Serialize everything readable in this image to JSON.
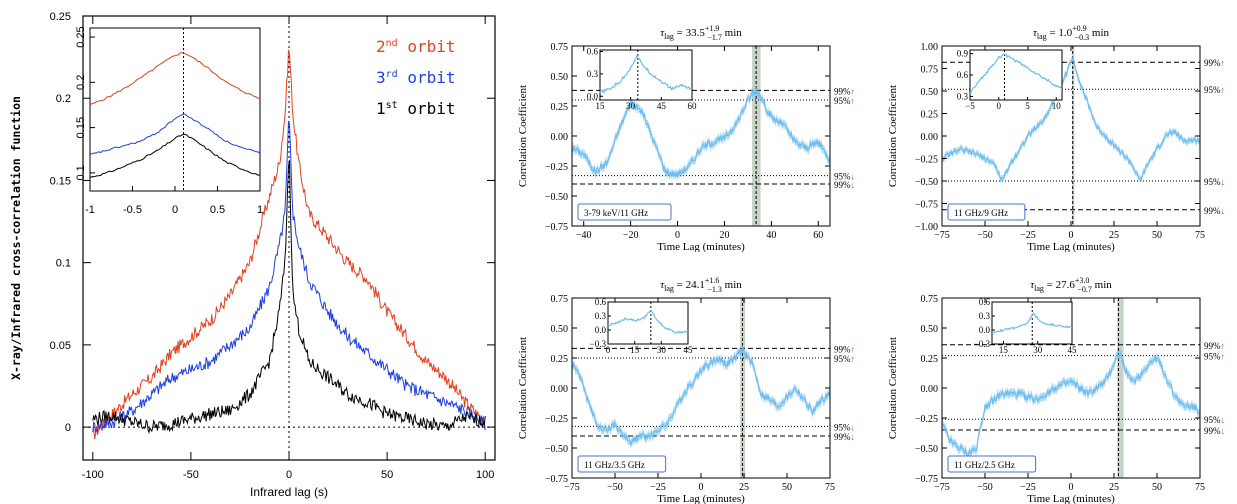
{
  "colors": {
    "red": "#e8401c",
    "blue": "#1c3fe8",
    "black": "#000000",
    "light_blue": "#6fbdf0",
    "shade": "#b8c8b8",
    "box": "#4a6fd0"
  },
  "chart_data": [
    {
      "type": "line",
      "xlabel": "Infrared lag (s)",
      "ylabel": "X-ray/Infrared cross-correlation function",
      "xlim": [
        -105,
        105
      ],
      "ylim": [
        -0.02,
        0.25
      ],
      "xticks": [
        -100,
        -50,
        0,
        50,
        100
      ],
      "yticks": [
        0,
        0.05,
        0.1,
        0.15,
        0.2,
        0.25
      ],
      "ytick_labels": [
        "0",
        "0.05",
        "0.1",
        "0.15",
        "0.2",
        "0.25"
      ],
      "legend": [
        {
          "base": "2",
          "sup": "nd",
          "rest": " orbit",
          "color": "#e8401c"
        },
        {
          "base": "3",
          "sup": "rd",
          "rest": " orbit",
          "color": "#1c3fe8"
        },
        {
          "base": "1",
          "sup": "st",
          "rest": " orbit",
          "color": "#000000"
        }
      ],
      "series": [
        {
          "color": "#e8401c",
          "x": [
            -100,
            -90,
            -80,
            -70,
            -60,
            -50,
            -40,
            -30,
            -20,
            -10,
            -5,
            -2,
            0,
            2,
            5,
            10,
            20,
            30,
            40,
            50,
            60,
            70,
            80,
            90,
            100
          ],
          "y": [
            -0.005,
            0.008,
            0.02,
            0.03,
            0.045,
            0.055,
            0.065,
            0.08,
            0.1,
            0.14,
            0.16,
            0.19,
            0.233,
            0.19,
            0.16,
            0.13,
            0.115,
            0.1,
            0.09,
            0.07,
            0.055,
            0.04,
            0.03,
            0.015,
            0.003
          ]
        },
        {
          "color": "#1c3fe8",
          "x": [
            -100,
            -90,
            -80,
            -70,
            -60,
            -50,
            -40,
            -30,
            -20,
            -10,
            -5,
            -2,
            0,
            2,
            5,
            10,
            20,
            30,
            40,
            50,
            60,
            70,
            80,
            90,
            100
          ],
          "y": [
            0.0,
            0.003,
            0.01,
            0.02,
            0.03,
            0.035,
            0.04,
            0.05,
            0.06,
            0.085,
            0.11,
            0.13,
            0.19,
            0.13,
            0.11,
            0.09,
            0.07,
            0.055,
            0.045,
            0.035,
            0.025,
            0.02,
            0.015,
            0.01,
            0.002
          ]
        },
        {
          "color": "#000000",
          "x": [
            -100,
            -90,
            -80,
            -70,
            -60,
            -50,
            -40,
            -30,
            -20,
            -10,
            -5,
            -2,
            0,
            2,
            5,
            10,
            20,
            30,
            40,
            50,
            60,
            70,
            80,
            90,
            100
          ],
          "y": [
            0.005,
            0.007,
            0.003,
            0.0,
            0.002,
            0.005,
            0.008,
            0.01,
            0.02,
            0.04,
            0.07,
            0.1,
            0.17,
            0.08,
            0.06,
            0.04,
            0.03,
            0.02,
            0.015,
            0.008,
            0.005,
            0.002,
            0.0,
            0.006,
            0.003
          ]
        }
      ],
      "inset": {
        "xlim": [
          -1,
          1
        ],
        "ylim": [
          0.08,
          0.26
        ],
        "xticks": [
          -1,
          -0.5,
          0,
          0.5,
          1
        ],
        "xtick_labels": [
          "-1",
          "-0.5",
          "0",
          "0.5",
          "1"
        ],
        "yticks": [
          0.1,
          0.15,
          0.2,
          0.25
        ],
        "ytick_labels": [
          "0.1",
          "0.15",
          "0.2",
          "0.25"
        ],
        "series": [
          {
            "color": "#e8401c",
            "x": [
              -1,
              -0.8,
              -0.6,
              -0.4,
              -0.2,
              0,
              0.1,
              0.2,
              0.4,
              0.6,
              0.8,
              1
            ],
            "y": [
              0.175,
              0.183,
              0.193,
              0.205,
              0.218,
              0.23,
              0.233,
              0.228,
              0.215,
              0.2,
              0.19,
              0.182
            ]
          },
          {
            "color": "#1c3fe8",
            "x": [
              -1,
              -0.8,
              -0.6,
              -0.4,
              -0.2,
              0,
              0.1,
              0.2,
              0.4,
              0.6,
              0.8,
              1
            ],
            "y": [
              0.12,
              0.125,
              0.13,
              0.135,
              0.145,
              0.16,
              0.165,
              0.16,
              0.148,
              0.135,
              0.127,
              0.122
            ]
          },
          {
            "color": "#000000",
            "x": [
              -1,
              -0.8,
              -0.6,
              -0.4,
              -0.2,
              0,
              0.1,
              0.2,
              0.4,
              0.6,
              0.8,
              1
            ],
            "y": [
              0.095,
              0.1,
              0.107,
              0.115,
              0.125,
              0.138,
              0.143,
              0.138,
              0.125,
              0.112,
              0.104,
              0.097
            ]
          }
        ]
      }
    },
    {
      "type": "line",
      "title_main": "τ",
      "title_sub": "lag",
      "title_val": " = 33.5",
      "title_sup": "+1.9",
      "title_inf": "−1.7",
      "title_unit": " min",
      "xlabel": "Time Lag (minutes)",
      "ylabel": "Correlation Coefficient",
      "xlim": [
        -45,
        65
      ],
      "ylim": [
        -0.75,
        0.75
      ],
      "xticks": [
        -40,
        -20,
        0,
        20,
        40,
        60
      ],
      "yticks": [
        -0.75,
        -0.5,
        -0.25,
        0,
        0.25,
        0.5,
        0.75
      ],
      "ytick_labels": [
        "−0.75",
        "−0.50",
        "−0.25",
        "0.00",
        "0.25",
        "0.50",
        "0.75"
      ],
      "peak": 33.5,
      "peak_band": [
        31.8,
        35.4
      ],
      "levels": [
        {
          "value": 0.38,
          "style": "dashed",
          "label": "99%",
          "arrow": "↑"
        },
        {
          "value": 0.3,
          "style": "dotted",
          "label": "95%",
          "arrow": "↑"
        },
        {
          "value": -0.33,
          "style": "dotted",
          "label": "95%",
          "arrow": "↓"
        },
        {
          "value": -0.4,
          "style": "dashed",
          "label": "99%",
          "arrow": "↓"
        }
      ],
      "band_label": "3-79 keV/11 GHz",
      "x": [
        -45,
        -40,
        -35,
        -30,
        -25,
        -20,
        -15,
        -10,
        -5,
        0,
        5,
        10,
        15,
        20,
        25,
        30,
        33,
        35,
        40,
        45,
        50,
        55,
        60,
        65
      ],
      "y": [
        -0.1,
        -0.15,
        -0.3,
        -0.22,
        0.05,
        0.28,
        0.2,
        -0.05,
        -0.3,
        -0.32,
        -0.25,
        -0.1,
        -0.05,
        -0.02,
        0.1,
        0.3,
        0.38,
        0.35,
        0.15,
        0.1,
        -0.05,
        -0.1,
        -0.05,
        -0.2
      ],
      "inset": {
        "xlim": [
          15,
          60
        ],
        "ylim": [
          -0.05,
          0.62
        ],
        "xticks": [
          15,
          30,
          45,
          60
        ],
        "yticks": [
          0,
          0.3,
          0.6
        ],
        "ytick_labels": [
          "0.0",
          "0.3",
          "0.6"
        ],
        "peak": 33.5,
        "x": [
          15,
          20,
          25,
          30,
          33,
          35,
          40,
          45,
          50,
          55,
          60
        ],
        "y": [
          0.05,
          0.1,
          0.2,
          0.38,
          0.55,
          0.45,
          0.3,
          0.2,
          0.1,
          0.15,
          0.1
        ]
      }
    },
    {
      "type": "line",
      "title_main": "τ",
      "title_sub": "lag",
      "title_val": " = 1.0",
      "title_sup": "+0.9",
      "title_inf": "−0.3",
      "title_unit": " min",
      "xlabel": "Time Lag (minutes)",
      "ylabel": "Correlation Coefficient",
      "xlim": [
        -75,
        75
      ],
      "ylim": [
        -1.0,
        1.0
      ],
      "xticks": [
        -75,
        -50,
        -25,
        0,
        25,
        50,
        75
      ],
      "yticks": [
        -1.0,
        -0.75,
        -0.5,
        -0.25,
        0,
        0.25,
        0.5,
        0.75,
        1.0
      ],
      "ytick_labels": [
        "−1.00",
        "−0.75",
        "−0.50",
        "−0.25",
        "0.00",
        "0.25",
        "0.50",
        "0.75",
        "1.00"
      ],
      "peak": 1.0,
      "peak_band": [
        0.7,
        1.9
      ],
      "levels": [
        {
          "value": 0.82,
          "style": "dashed",
          "label": "99%",
          "arrow": "↑"
        },
        {
          "value": 0.52,
          "style": "dotted",
          "label": "95%",
          "arrow": "↑"
        },
        {
          "value": -0.5,
          "style": "dotted",
          "label": "95%",
          "arrow": "↓"
        },
        {
          "value": -0.82,
          "style": "dashed",
          "label": "99%",
          "arrow": "↓"
        }
      ],
      "band_label": "11 GHz/9 GHz",
      "x": [
        -75,
        -65,
        -55,
        -45,
        -40,
        -35,
        -25,
        -15,
        -5,
        0,
        1,
        5,
        15,
        25,
        35,
        40,
        45,
        55,
        60,
        65,
        75
      ],
      "y": [
        -0.25,
        -0.15,
        -0.2,
        -0.3,
        -0.5,
        -0.3,
        0.0,
        0.2,
        0.6,
        0.82,
        0.88,
        0.6,
        0.1,
        -0.1,
        -0.3,
        -0.5,
        -0.3,
        0.0,
        0.05,
        -0.05,
        -0.05
      ],
      "inset": {
        "xlim": [
          -5,
          11
        ],
        "ylim": [
          0.25,
          0.95
        ],
        "xticks": [
          -5,
          0,
          5,
          10
        ],
        "yticks": [
          0.3,
          0.6,
          0.9
        ],
        "ytick_labels": [
          "0.3",
          "0.6",
          "0.9"
        ],
        "peak": 1.0,
        "x": [
          -5,
          -3,
          -1,
          0,
          1,
          2,
          4,
          6,
          8,
          10,
          11
        ],
        "y": [
          0.35,
          0.55,
          0.75,
          0.85,
          0.88,
          0.85,
          0.75,
          0.65,
          0.55,
          0.45,
          0.4
        ]
      }
    },
    {
      "type": "line",
      "title_main": "τ",
      "title_sub": "lag",
      "title_val": " = 24.1",
      "title_sup": "+1.6",
      "title_inf": "−1.3",
      "title_unit": " min",
      "xlabel": "Time Lag (minutes)",
      "ylabel": "Correlation Coefficient",
      "xlim": [
        -75,
        75
      ],
      "ylim": [
        -0.75,
        0.75
      ],
      "xticks": [
        -75,
        -50,
        -25,
        0,
        25,
        50,
        75
      ],
      "yticks": [
        -0.75,
        -0.5,
        -0.25,
        0,
        0.25,
        0.5,
        0.75
      ],
      "ytick_labels": [
        "−0.75",
        "−0.50",
        "−0.25",
        "0.00",
        "0.25",
        "0.50",
        "0.75"
      ],
      "peak": 24.1,
      "peak_band": [
        22.8,
        25.7
      ],
      "levels": [
        {
          "value": 0.33,
          "style": "dashed",
          "label": "99%",
          "arrow": "↑"
        },
        {
          "value": 0.25,
          "style": "dotted",
          "label": "95%",
          "arrow": "↑"
        },
        {
          "value": -0.32,
          "style": "dotted",
          "label": "95%",
          "arrow": "↓"
        },
        {
          "value": -0.4,
          "style": "dashed",
          "label": "99%",
          "arrow": "↓"
        }
      ],
      "band_label": "11 GHz/3.5 GHz",
      "x": [
        -75,
        -70,
        -65,
        -60,
        -55,
        -50,
        -45,
        -40,
        -35,
        -30,
        -20,
        -10,
        0,
        10,
        15,
        20,
        24,
        30,
        35,
        45,
        55,
        65,
        70,
        75
      ],
      "y": [
        0.2,
        0.1,
        -0.15,
        -0.3,
        -0.35,
        -0.3,
        -0.4,
        -0.45,
        -0.4,
        -0.4,
        -0.3,
        -0.05,
        0.15,
        0.25,
        0.2,
        0.25,
        0.32,
        0.2,
        -0.05,
        -0.15,
        0.0,
        -0.2,
        -0.1,
        -0.05
      ],
      "inset": {
        "xlim": [
          0,
          45
        ],
        "ylim": [
          -0.3,
          0.6
        ],
        "xticks": [
          0,
          15,
          30,
          45
        ],
        "yticks": [
          -0.3,
          0.0,
          0.3,
          0.6
        ],
        "ytick_labels": [
          "−0.3",
          "0.0",
          "0.3",
          "0.6"
        ],
        "peak": 24.1,
        "x": [
          0,
          5,
          10,
          15,
          20,
          24,
          28,
          32,
          38,
          45
        ],
        "y": [
          0.1,
          0.15,
          0.25,
          0.2,
          0.25,
          0.42,
          0.2,
          0.05,
          -0.05,
          -0.05
        ]
      }
    },
    {
      "type": "line",
      "title_main": "τ",
      "title_sub": "lag",
      "title_val": " = 27.6",
      "title_sup": "+3.0",
      "title_inf": "−0.7",
      "title_unit": " min",
      "xlabel": "Time Lag (minutes)",
      "ylabel": "Correlation Coefficient",
      "xlim": [
        -75,
        75
      ],
      "ylim": [
        -0.75,
        0.75
      ],
      "xticks": [
        -75,
        -50,
        -25,
        0,
        25,
        50,
        75
      ],
      "yticks": [
        -0.75,
        -0.5,
        -0.25,
        0,
        0.25,
        0.5,
        0.75
      ],
      "ytick_labels": [
        "−0.75",
        "−0.50",
        "−0.25",
        "0.00",
        "0.25",
        "0.50",
        "0.75"
      ],
      "peak": 27.6,
      "peak_band": [
        26.9,
        30.6
      ],
      "levels": [
        {
          "value": 0.36,
          "style": "dashed",
          "label": "99%",
          "arrow": "↑"
        },
        {
          "value": 0.27,
          "style": "dotted",
          "label": "95%",
          "arrow": "↑"
        },
        {
          "value": -0.26,
          "style": "dotted",
          "label": "95%",
          "arrow": "↓"
        },
        {
          "value": -0.35,
          "style": "dashed",
          "label": "99%",
          "arrow": "↓"
        }
      ],
      "band_label": "11 GHz/2.5 GHz",
      "x": [
        -75,
        -70,
        -65,
        -60,
        -55,
        -50,
        -45,
        -40,
        -30,
        -20,
        -10,
        0,
        10,
        20,
        28,
        35,
        40,
        45,
        50,
        55,
        60,
        65,
        70,
        75
      ],
      "y": [
        -0.3,
        -0.45,
        -0.5,
        -0.55,
        -0.5,
        -0.15,
        -0.1,
        -0.05,
        -0.05,
        -0.1,
        0.0,
        0.05,
        -0.05,
        0.05,
        0.3,
        0.05,
        0.1,
        0.2,
        0.25,
        0.1,
        -0.05,
        -0.15,
        -0.15,
        -0.2
      ],
      "inset": {
        "xlim": [
          10,
          45
        ],
        "ylim": [
          -0.3,
          0.6
        ],
        "xticks": [
          15,
          30,
          45
        ],
        "yticks": [
          -0.3,
          0.0,
          0.3,
          0.6
        ],
        "ytick_labels": [
          "−0.3",
          "0.0",
          "0.3",
          "0.6"
        ],
        "peak": 27.6,
        "x": [
          10,
          15,
          20,
          25,
          28,
          32,
          38,
          45
        ],
        "y": [
          -0.05,
          0.0,
          0.05,
          0.12,
          0.35,
          0.15,
          0.1,
          0.05
        ]
      }
    }
  ]
}
